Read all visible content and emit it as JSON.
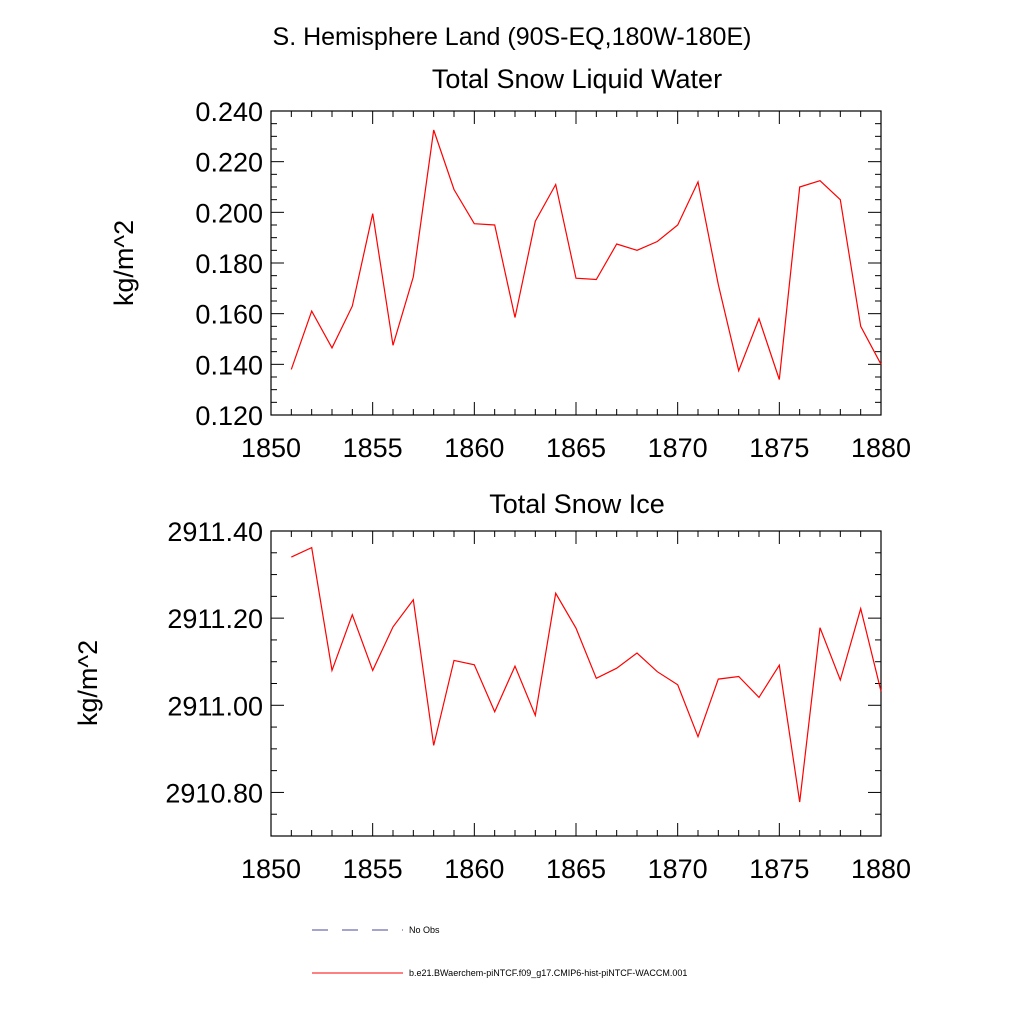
{
  "page_title": "S. Hemisphere Land (90S-EQ,180W-180E)",
  "legend": {
    "obs_label": "No Obs",
    "obs_color": "#4a4a9a",
    "model_label": "b.e21.BWaerchem-piNTCF.f09_g17.CMIP6-hist-piNTCF-WACCM.001",
    "model_color": "#ff0000"
  },
  "chart_data": [
    {
      "type": "line",
      "title": "Total Snow Liquid Water",
      "xlabel": "",
      "ylabel": "kg/m^2",
      "xlim": [
        1850,
        1880
      ],
      "ylim": [
        0.12,
        0.24
      ],
      "xticks": [
        "1850",
        "1855",
        "1860",
        "1865",
        "1870",
        "1875",
        "1880"
      ],
      "yticks": [
        "0.120",
        "0.140",
        "0.160",
        "0.180",
        "0.200",
        "0.220",
        "0.240"
      ],
      "grid": false,
      "series": [
        {
          "color": "#ff0000",
          "x": [
            1851,
            1852,
            1853,
            1854,
            1855,
            1856,
            1857,
            1858,
            1859,
            1860,
            1861,
            1862,
            1863,
            1864,
            1865,
            1866,
            1867,
            1868,
            1869,
            1870,
            1871,
            1872,
            1873,
            1874,
            1875,
            1876,
            1877,
            1878,
            1879,
            1880
          ],
          "values": [
            0.138,
            0.161,
            0.1465,
            0.163,
            0.1995,
            0.1475,
            0.1745,
            0.2325,
            0.209,
            0.1955,
            0.195,
            0.1585,
            0.1965,
            0.211,
            0.174,
            0.1735,
            0.1875,
            0.185,
            0.1885,
            0.195,
            0.212,
            0.1715,
            0.1375,
            0.158,
            0.134,
            0.21,
            0.2125,
            0.205,
            0.155,
            0.14
          ]
        }
      ]
    },
    {
      "type": "line",
      "title": "Total Snow Ice",
      "xlabel": "",
      "ylabel": "kg/m^2",
      "xlim": [
        1850,
        1880
      ],
      "ylim": [
        2910.7,
        2911.4
      ],
      "xticks": [
        "1850",
        "1855",
        "1860",
        "1865",
        "1870",
        "1875",
        "1880"
      ],
      "yticks": [
        "2910.80",
        "2911.00",
        "2911.20",
        "2911.40"
      ],
      "grid": false,
      "series": [
        {
          "color": "#ff0000",
          "x": [
            1851,
            1852,
            1853,
            1854,
            1855,
            1856,
            1857,
            1858,
            1859,
            1860,
            1861,
            1862,
            1863,
            1864,
            1865,
            1866,
            1867,
            1868,
            1869,
            1870,
            1871,
            1872,
            1873,
            1874,
            1875,
            1876,
            1877,
            1878,
            1879,
            1880
          ],
          "values": [
            2911.34,
            2911.362,
            2911.08,
            2911.208,
            2911.08,
            2911.18,
            2911.242,
            2910.908,
            2911.103,
            2911.093,
            2910.985,
            2911.09,
            2910.977,
            2911.257,
            2911.177,
            2911.062,
            2911.085,
            2911.12,
            2911.077,
            2911.047,
            2910.928,
            2911.06,
            2911.066,
            2911.018,
            2911.092,
            2910.778,
            2911.178,
            2911.058,
            2911.222,
            2911.032
          ]
        }
      ]
    }
  ]
}
